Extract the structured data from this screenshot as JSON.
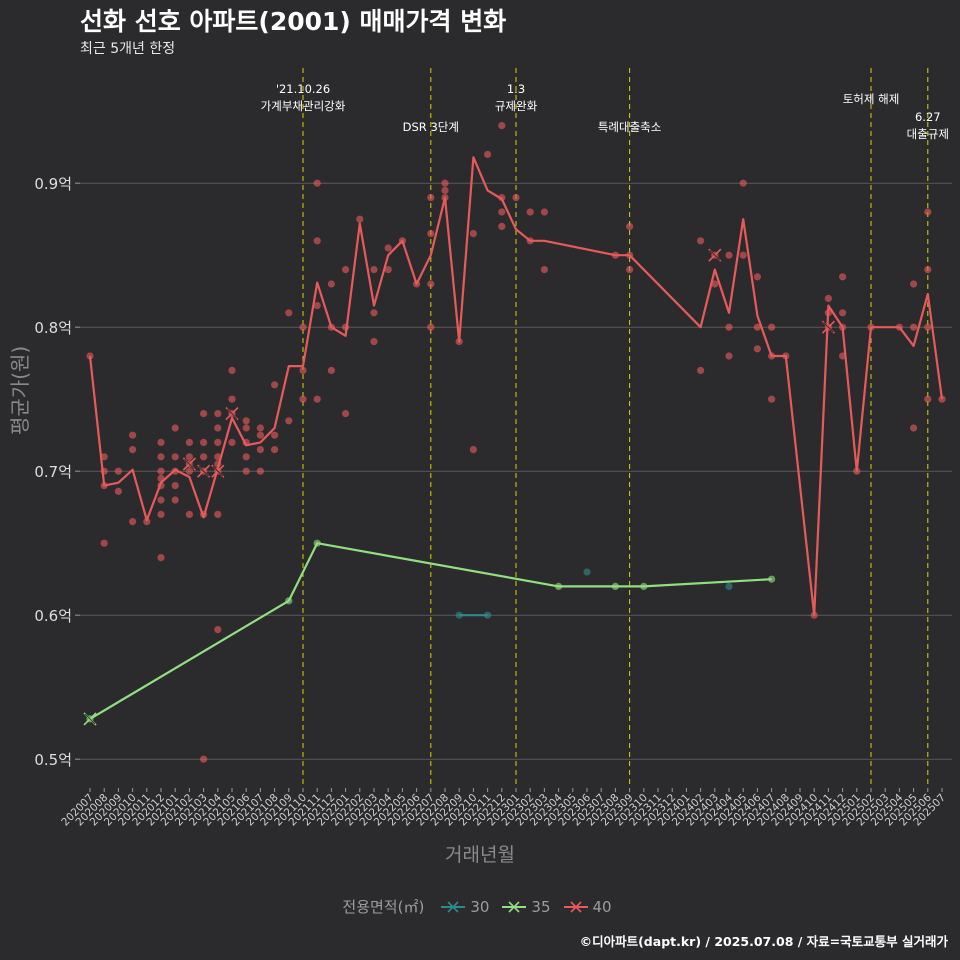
{
  "header": {
    "title": "선화 선호 아파트(2001) 매매가격 변화",
    "subtitle": "최근 5개년 한정"
  },
  "caption": "©디아파트(dapt.kr) / 2025.07.08 / 자료=국토교통부 실거래가",
  "colors": {
    "bg": "#2b2b2d",
    "s30": "#2e8b8b",
    "s35": "#90e080",
    "s40": "#e85a5a",
    "vline": "#d4d400",
    "grid": "#5a5a5a"
  },
  "chart_data": {
    "type": "line",
    "xlabel": "거래년월",
    "ylabel": "평균가(원)",
    "ylim": [
      0.48,
      0.98
    ],
    "y_ticks": [
      0.5,
      0.6,
      0.7,
      0.8,
      0.9
    ],
    "y_tick_labels": [
      "0.5억",
      "0.6억",
      "0.7억",
      "0.8억",
      "0.9억"
    ],
    "categories": [
      "202007",
      "202008",
      "202009",
      "202010",
      "202011",
      "202012",
      "202101",
      "202102",
      "202103",
      "202104",
      "202105",
      "202106",
      "202107",
      "202108",
      "202109",
      "202110",
      "202111",
      "202112",
      "202201",
      "202202",
      "202203",
      "202204",
      "202205",
      "202206",
      "202207",
      "202208",
      "202209",
      "202210",
      "202211",
      "202212",
      "202301",
      "202302",
      "202303",
      "202304",
      "202305",
      "202306",
      "202307",
      "202308",
      "202309",
      "202310",
      "202311",
      "202312",
      "202401",
      "202402",
      "202403",
      "202404",
      "202405",
      "202406",
      "202407",
      "202408",
      "202409",
      "202410",
      "202411",
      "202412",
      "202501",
      "202502",
      "202503",
      "202504",
      "202505",
      "202506",
      "202507"
    ],
    "legend_title": "전용면적(㎡)",
    "series": [
      {
        "name": "30",
        "x": [
          "202209",
          "202211"
        ],
        "y": [
          0.6,
          0.6
        ],
        "points": [
          [
            "202209",
            0.6
          ],
          [
            "202211",
            0.6
          ],
          [
            "202306",
            0.63
          ],
          [
            "202404",
            0.62
          ]
        ],
        "crosses": []
      },
      {
        "name": "35",
        "x": [
          "202007",
          "202109",
          "202111",
          "202304",
          "202308",
          "202310",
          "202407"
        ],
        "y": [
          0.528,
          0.61,
          0.65,
          0.62,
          0.62,
          0.62,
          0.625
        ],
        "points": [
          [
            "202007",
            0.528
          ],
          [
            "202109",
            0.61
          ],
          [
            "202111",
            0.65
          ],
          [
            "202304",
            0.62
          ],
          [
            "202308",
            0.62
          ],
          [
            "202310",
            0.62
          ],
          [
            "202407",
            0.625
          ]
        ],
        "crosses": [
          [
            "202007",
            0.528
          ]
        ]
      },
      {
        "name": "40",
        "x": [
          "202007",
          "202008",
          "202009",
          "202010",
          "202011",
          "202012",
          "202101",
          "202102",
          "202103",
          "202104",
          "202105",
          "202106",
          "202107",
          "202108",
          "202109",
          "202110",
          "202111",
          "202112",
          "202201",
          "202202",
          "202203",
          "202204",
          "202205",
          "202206",
          "202207",
          "202208",
          "202209",
          "202210",
          "202211",
          "202212",
          "202301",
          "202302",
          "202303",
          "202308",
          "202309",
          "202402",
          "202403",
          "202404",
          "202405",
          "202406",
          "202407",
          "202408",
          "202410",
          "202411",
          "202412",
          "202501",
          "202502",
          "202504",
          "202505",
          "202506",
          "202507"
        ],
        "y": [
          0.78,
          0.69,
          0.692,
          0.701,
          0.666,
          0.692,
          0.701,
          0.696,
          0.668,
          0.702,
          0.737,
          0.718,
          0.72,
          0.73,
          0.773,
          0.773,
          0.831,
          0.8,
          0.794,
          0.872,
          0.815,
          0.85,
          0.86,
          0.83,
          0.85,
          0.89,
          0.79,
          0.918,
          0.895,
          0.889,
          0.868,
          0.86,
          0.86,
          0.85,
          0.85,
          0.8,
          0.84,
          0.81,
          0.875,
          0.808,
          0.78,
          0.78,
          0.6,
          0.815,
          0.8,
          0.7,
          0.8,
          0.8,
          0.787,
          0.823,
          0.75
        ],
        "points": [
          [
            "202007",
            0.78
          ],
          [
            "202008",
            0.71
          ],
          [
            "202008",
            0.7
          ],
          [
            "202008",
            0.69
          ],
          [
            "202008",
            0.65
          ],
          [
            "202009",
            0.7
          ],
          [
            "202009",
            0.686
          ],
          [
            "202010",
            0.725
          ],
          [
            "202010",
            0.715
          ],
          [
            "202010",
            0.665
          ],
          [
            "202011",
            0.665
          ],
          [
            "202012",
            0.72
          ],
          [
            "202012",
            0.71
          ],
          [
            "202012",
            0.7
          ],
          [
            "202012",
            0.695
          ],
          [
            "202012",
            0.69
          ],
          [
            "202012",
            0.68
          ],
          [
            "202012",
            0.67
          ],
          [
            "202012",
            0.64
          ],
          [
            "202101",
            0.73
          ],
          [
            "202101",
            0.71
          ],
          [
            "202101",
            0.7
          ],
          [
            "202101",
            0.69
          ],
          [
            "202101",
            0.68
          ],
          [
            "202102",
            0.72
          ],
          [
            "202102",
            0.71
          ],
          [
            "202102",
            0.705
          ],
          [
            "202102",
            0.7
          ],
          [
            "202102",
            0.67
          ],
          [
            "202103",
            0.74
          ],
          [
            "202103",
            0.72
          ],
          [
            "202103",
            0.71
          ],
          [
            "202103",
            0.7
          ],
          [
            "202103",
            0.67
          ],
          [
            "202103",
            0.5
          ],
          [
            "202104",
            0.74
          ],
          [
            "202104",
            0.73
          ],
          [
            "202104",
            0.72
          ],
          [
            "202104",
            0.71
          ],
          [
            "202104",
            0.705
          ],
          [
            "202104",
            0.7
          ],
          [
            "202104",
            0.67
          ],
          [
            "202104",
            0.59
          ],
          [
            "202105",
            0.77
          ],
          [
            "202105",
            0.75
          ],
          [
            "202105",
            0.74
          ],
          [
            "202105",
            0.72
          ],
          [
            "202106",
            0.735
          ],
          [
            "202106",
            0.73
          ],
          [
            "202106",
            0.72
          ],
          [
            "202106",
            0.71
          ],
          [
            "202106",
            0.7
          ],
          [
            "202107",
            0.73
          ],
          [
            "202107",
            0.725
          ],
          [
            "202107",
            0.715
          ],
          [
            "202107",
            0.7
          ],
          [
            "202108",
            0.76
          ],
          [
            "202108",
            0.725
          ],
          [
            "202108",
            0.715
          ],
          [
            "202109",
            0.81
          ],
          [
            "202109",
            0.735
          ],
          [
            "202110",
            0.8
          ],
          [
            "202110",
            0.77
          ],
          [
            "202110",
            0.75
          ],
          [
            "202111",
            0.9
          ],
          [
            "202111",
            0.86
          ],
          [
            "202111",
            0.815
          ],
          [
            "202111",
            0.75
          ],
          [
            "202112",
            0.83
          ],
          [
            "202112",
            0.8
          ],
          [
            "202112",
            0.77
          ],
          [
            "202201",
            0.84
          ],
          [
            "202201",
            0.8
          ],
          [
            "202201",
            0.74
          ],
          [
            "202202",
            0.875
          ],
          [
            "202203",
            0.84
          ],
          [
            "202203",
            0.81
          ],
          [
            "202203",
            0.79
          ],
          [
            "202204",
            0.855
          ],
          [
            "202204",
            0.84
          ],
          [
            "202205",
            0.86
          ],
          [
            "202206",
            0.83
          ],
          [
            "202207",
            0.89
          ],
          [
            "202207",
            0.865
          ],
          [
            "202207",
            0.83
          ],
          [
            "202207",
            0.8
          ],
          [
            "202208",
            0.9
          ],
          [
            "202208",
            0.895
          ],
          [
            "202208",
            0.89
          ],
          [
            "202209",
            0.79
          ],
          [
            "202210",
            0.865
          ],
          [
            "202210",
            0.715
          ],
          [
            "202211",
            0.92
          ],
          [
            "202212",
            0.94
          ],
          [
            "202212",
            0.89
          ],
          [
            "202212",
            0.88
          ],
          [
            "202212",
            0.87
          ],
          [
            "202301",
            0.89
          ],
          [
            "202302",
            0.88
          ],
          [
            "202302",
            0.86
          ],
          [
            "202303",
            0.88
          ],
          [
            "202303",
            0.84
          ],
          [
            "202308",
            0.85
          ],
          [
            "202309",
            0.87
          ],
          [
            "202309",
            0.85
          ],
          [
            "202309",
            0.84
          ],
          [
            "202402",
            0.86
          ],
          [
            "202402",
            0.77
          ],
          [
            "202403",
            0.85
          ],
          [
            "202403",
            0.83
          ],
          [
            "202404",
            0.85
          ],
          [
            "202404",
            0.8
          ],
          [
            "202404",
            0.78
          ],
          [
            "202405",
            0.9
          ],
          [
            "202405",
            0.85
          ],
          [
            "202406",
            0.835
          ],
          [
            "202406",
            0.8
          ],
          [
            "202406",
            0.785
          ],
          [
            "202407",
            0.8
          ],
          [
            "202407",
            0.78
          ],
          [
            "202407",
            0.75
          ],
          [
            "202408",
            0.78
          ],
          [
            "202410",
            0.6
          ],
          [
            "202411",
            0.82
          ],
          [
            "202411",
            0.81
          ],
          [
            "202411",
            0.8
          ],
          [
            "202412",
            0.835
          ],
          [
            "202412",
            0.81
          ],
          [
            "202412",
            0.8
          ],
          [
            "202412",
            0.78
          ],
          [
            "202501",
            0.7
          ],
          [
            "202502",
            0.8
          ],
          [
            "202504",
            0.8
          ],
          [
            "202505",
            0.83
          ],
          [
            "202505",
            0.8
          ],
          [
            "202505",
            0.73
          ],
          [
            "202506",
            0.88
          ],
          [
            "202506",
            0.84
          ],
          [
            "202506",
            0.8
          ],
          [
            "202506",
            0.75
          ],
          [
            "202507",
            0.75
          ]
        ],
        "crosses": [
          [
            "202102",
            0.705
          ],
          [
            "202103",
            0.7
          ],
          [
            "202104",
            0.7
          ],
          [
            "202105",
            0.74
          ],
          [
            "202403",
            0.85
          ],
          [
            "202411",
            0.8
          ]
        ]
      }
    ],
    "annotations": [
      {
        "x": "202110",
        "lines": [
          "'21.10.26",
          "가계부채관리강화"
        ],
        "row": 0
      },
      {
        "x": "202207",
        "lines": [
          "DSR 3단계"
        ],
        "row": 2
      },
      {
        "x": "202301",
        "lines": [
          "1.3",
          "규제완화"
        ],
        "row": 0
      },
      {
        "x": "202309",
        "lines": [
          "특례대출축소"
        ],
        "row": 2
      },
      {
        "x": "202502",
        "lines": [
          "토허제 해제"
        ],
        "row": 1
      },
      {
        "x": "202506",
        "lines": [
          "6.27",
          "대출규제"
        ],
        "row": 1.5
      }
    ]
  }
}
